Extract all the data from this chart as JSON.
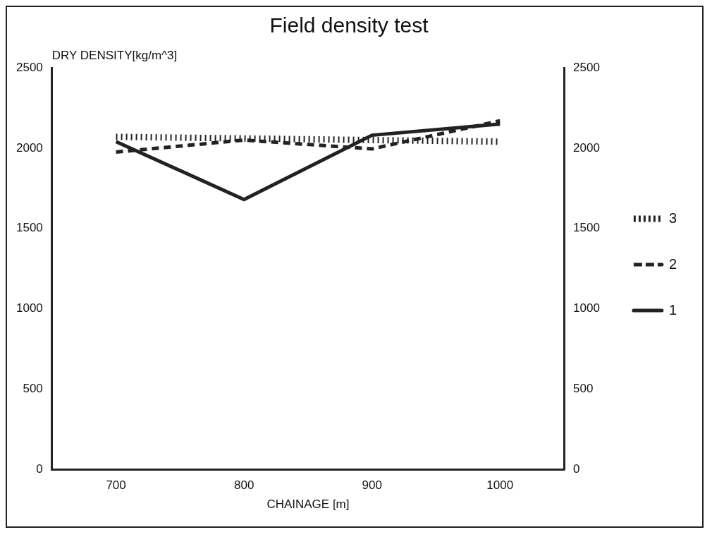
{
  "chart_data": {
    "type": "line",
    "title": "Field density test",
    "ylabel": "DRY DENSITY[kg/m^3]",
    "xlabel": "CHAINAGE [m]",
    "x": [
      700,
      800,
      900,
      1000
    ],
    "series": [
      {
        "name": "1",
        "color": "#222222",
        "values": [
          2040,
          1680,
          2080,
          2150
        ],
        "line_style": "solid"
      },
      {
        "name": "2",
        "color": "#222222",
        "values": [
          1975,
          2050,
          1995,
          2170
        ],
        "line_style": "dashed"
      },
      {
        "name": "3",
        "color": "#222222",
        "values": [
          2070,
          2060,
          2050,
          2040
        ],
        "line_style": "dotted"
      }
    ],
    "xlim": [
      650,
      1050
    ],
    "xticks": [
      700,
      800,
      900,
      1000
    ],
    "ylim": [
      0,
      2500
    ],
    "yticks": [
      0,
      500,
      1000,
      1500,
      2000,
      2500
    ],
    "y2lim": [
      0,
      2500
    ],
    "y2ticks": [
      0,
      500,
      1000,
      1500,
      2000,
      2500
    ],
    "legend": "right",
    "grid": false,
    "marker": "none"
  }
}
